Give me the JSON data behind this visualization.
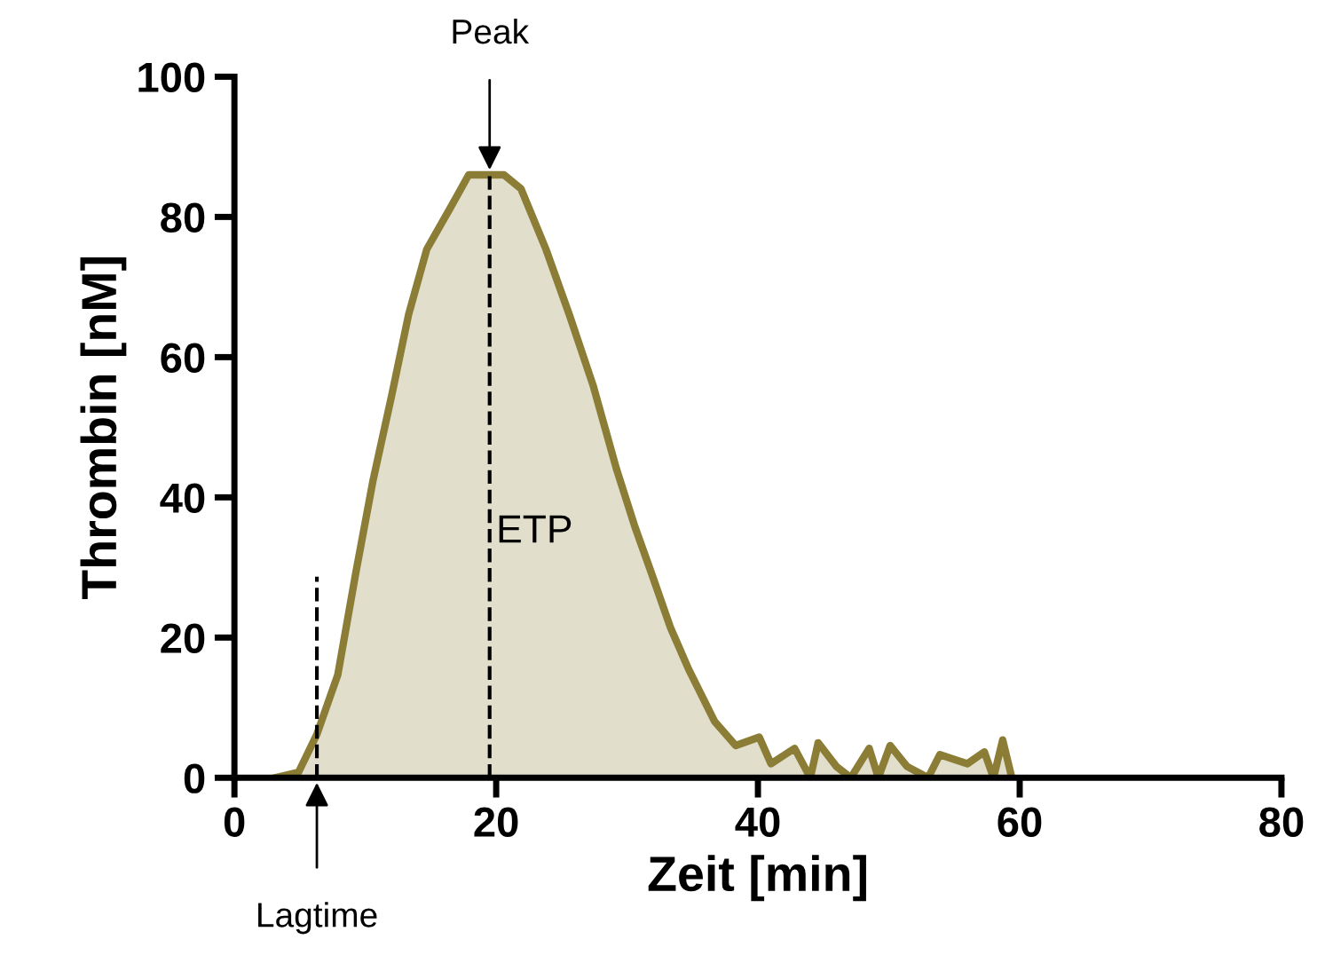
{
  "chart_data": {
    "type": "area",
    "xlabel": "Zeit [min]",
    "ylabel": "Thrombin [nM]",
    "xlim": [
      0,
      80
    ],
    "ylim": [
      0,
      100
    ],
    "xticks": [
      0,
      20,
      40,
      60,
      80
    ],
    "yticks": [
      0,
      20,
      40,
      60,
      80,
      100
    ],
    "grid": false,
    "series": [
      {
        "color": "#8b7d35",
        "x": [
          3.1,
          4.9,
          6.3,
          7.9,
          9.25,
          10.6,
          12,
          13.3,
          14.7,
          16.5,
          17.9,
          20.6,
          21.9,
          23.8,
          25.6,
          27.4,
          29.2,
          30.6,
          31.9,
          33.3,
          34.7,
          36.7,
          38.3,
          40.1,
          41,
          42.8,
          44,
          44.6,
          46,
          47.1,
          48.5,
          49.2,
          50.1,
          51.4,
          53,
          53.9,
          56,
          57.3,
          58,
          58.7,
          59.4
        ],
        "values": [
          0,
          0.8,
          6.2,
          14.7,
          29,
          42.5,
          54.4,
          66,
          75.4,
          81.3,
          86,
          86,
          84,
          75.4,
          66,
          56,
          44,
          35.8,
          29,
          21.5,
          15.5,
          8,
          4.6,
          5.8,
          2,
          4.2,
          0,
          5,
          1.6,
          0,
          4.2,
          0,
          4.6,
          1.6,
          0,
          3.3,
          2,
          3.7,
          0,
          5.4,
          0
        ]
      }
    ],
    "ref_lines": [
      {
        "axis": "x",
        "value": 6.3,
        "label": "Lagtime",
        "line_style": "dashed"
      },
      {
        "axis": "x",
        "value": 19.5,
        "label": "Peak",
        "line_style": "dashed"
      }
    ],
    "annotations": [
      {
        "text": "ETP",
        "x": 20,
        "y": 35
      }
    ]
  }
}
